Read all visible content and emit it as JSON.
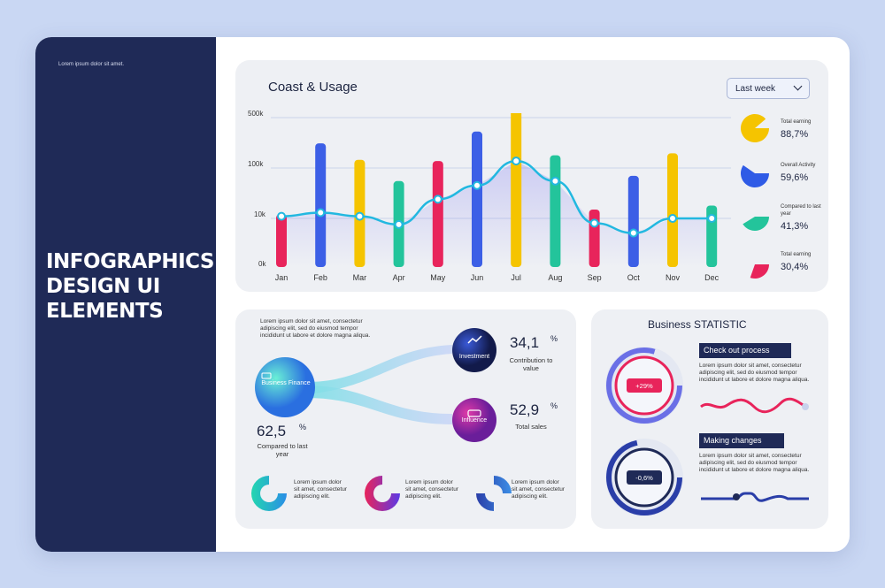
{
  "sidebar": {
    "tagline": "Lorem ipsum dolor sit amet.",
    "headline_lines": [
      "INFOGRAPHICS",
      "DESIGN UI",
      "ELEMENTS"
    ]
  },
  "usage_card": {
    "title": "Coast & Usage",
    "period_select": "Last week",
    "legend": [
      {
        "label": "Total earning",
        "value": "88,7%",
        "fraction": 0.887,
        "color": "#f5c400"
      },
      {
        "label": "Overall Activity",
        "value": "59,6%",
        "fraction": 0.596,
        "color": "#2f5be6"
      },
      {
        "label": "Compared to last year",
        "value": "41,3%",
        "fraction": 0.413,
        "color": "#23c49b"
      },
      {
        "label": "Total earning",
        "value": "30,4%",
        "fraction": 0.304,
        "color": "#e8245b"
      }
    ]
  },
  "chart_data": {
    "type": "bar",
    "title": "Coast & Usage",
    "categories": [
      "Jan",
      "Feb",
      "Mar",
      "Apr",
      "May",
      "Jun",
      "Jul",
      "Aug",
      "Sep",
      "Oct",
      "Nov",
      "Dec"
    ],
    "y_ticks": [
      "500k",
      "100k",
      "10k",
      "0k"
    ],
    "scale": "log",
    "series": [
      {
        "values": [
          12000,
          220000,
          130000,
          55000,
          125000,
          320000,
          700000,
          150000,
          15000,
          70000,
          160000,
          18000
        ],
        "colors": [
          "#e8245b",
          "#3c5fe6",
          "#f5c400",
          "#23c49b",
          "#e8245b",
          "#3c5fe6",
          "#f5c400",
          "#23c49b",
          "#e8245b",
          "#3c5fe6",
          "#f5c400",
          "#23c49b"
        ]
      },
      {
        "type": "line",
        "values": [
          11000,
          13000,
          11000,
          7500,
          24000,
          45000,
          125000,
          55000,
          8000,
          5000,
          10000,
          10000
        ]
      }
    ]
  },
  "finance_card": {
    "intro": [
      "Lorem ipsum dolor sit amet, consectetur",
      "adipiscing elit, sed do eiusmod tempor",
      "incididunt ut labore et dolore magna aliqua."
    ],
    "main_node": {
      "label": "Business Finance",
      "value": "62,5",
      "unit": "%",
      "caption": "Compared to last year"
    },
    "investment": {
      "label": "Investment",
      "value": "34,1",
      "unit": "%",
      "caption": "Contribution to value"
    },
    "influence": {
      "label": "Influence",
      "value": "52,9",
      "unit": "%",
      "caption": "Total sales"
    },
    "donuts": [
      {
        "text": "Lorem ipsum dolor sit amet, consectetur adipiscing elit."
      },
      {
        "text": "Lorem ipsum dolor sit amet, consectetur adipiscing elit."
      },
      {
        "text": "Lorem ipsum dolor sit amet, consectetur adipiscing elit."
      }
    ]
  },
  "statistic_card": {
    "title": "Business STATISTIC",
    "blocks": [
      {
        "heading": "Check out process",
        "badge": "+29%",
        "text": "Lorem ipsum dolor sit amet, consectetur adipiscing elit, sed do eiusmod tempor incididunt ut labore et dolore magna aliqua."
      },
      {
        "heading": "Making changes",
        "badge": "-0,6%",
        "text": "Lorem ipsum dolor sit amet, consectetur adipiscing elit, sed do eiusmod tempor incididunt ut labore et dolore magna aliqua."
      }
    ]
  },
  "colors": {
    "navy": "#1f2a57",
    "pink": "#e8245b",
    "blue": "#3c5fe6",
    "yellow": "#f5c400",
    "teal": "#23c49b",
    "line": "#22b8e0"
  }
}
